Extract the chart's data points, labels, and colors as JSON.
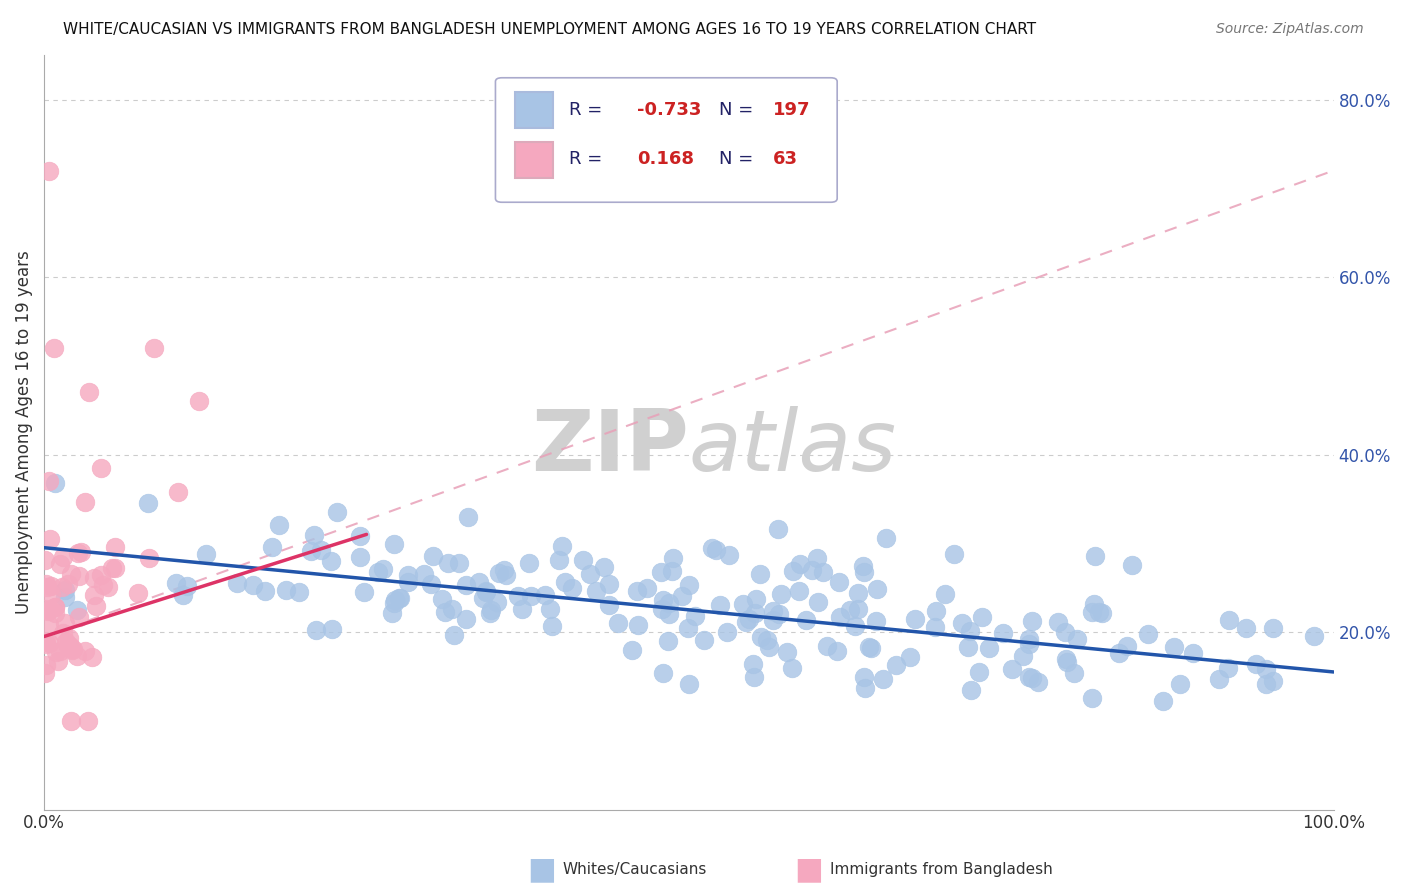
{
  "title": "WHITE/CAUCASIAN VS IMMIGRANTS FROM BANGLADESH UNEMPLOYMENT AMONG AGES 16 TO 19 YEARS CORRELATION CHART",
  "source": "Source: ZipAtlas.com",
  "ylabel": "Unemployment Among Ages 16 to 19 years",
  "watermark": "ZIPatlas",
  "blue_R": -0.733,
  "blue_N": 197,
  "pink_R": 0.168,
  "pink_N": 63,
  "blue_label": "Whites/Caucasians",
  "pink_label": "Immigrants from Bangladesh",
  "xlim": [
    0,
    1.0
  ],
  "ylim": [
    0,
    0.85
  ],
  "ytick_vals": [
    0.2,
    0.4,
    0.6,
    0.8
  ],
  "ytick_labels": [
    "20.0%",
    "40.0%",
    "60.0%",
    "80.0%"
  ],
  "xtick_vals": [
    0.0,
    1.0
  ],
  "xtick_labels": [
    "0.0%",
    "100.0%"
  ],
  "blue_scatter_color": "#a8c4e5",
  "pink_scatter_color": "#f5a8bf",
  "blue_line_color": "#2255aa",
  "pink_line_color": "#dd3366",
  "pink_dash_color": "#e8a0b8",
  "grid_color": "#cccccc",
  "bg_color": "#ffffff",
  "title_color": "#111111",
  "source_color": "#777777",
  "legend_border_color": "#aaaacc",
  "legend_text_color": "#222266",
  "legend_value_color": "#cc2222",
  "watermark_color": "#d0d0d0"
}
